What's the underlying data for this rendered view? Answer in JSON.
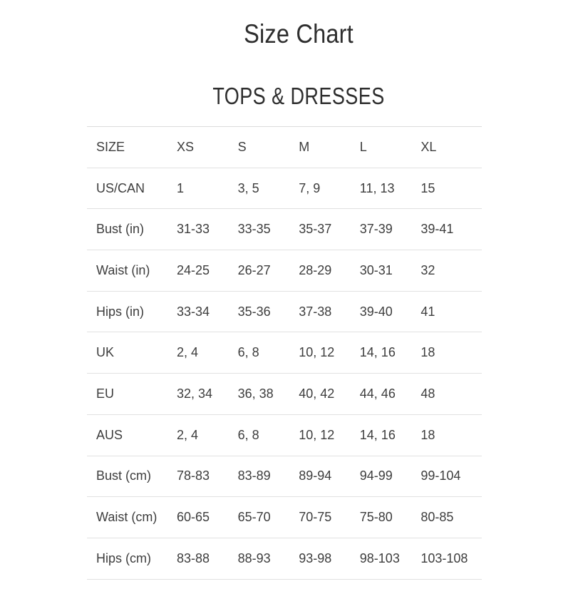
{
  "page": {
    "title": "Size Chart",
    "section_title": "TOPS & DRESSES"
  },
  "colors": {
    "background": "#ffffff",
    "heading_text": "#2e2e2e",
    "table_text": "#3d3d3d",
    "divider": "#e1e1e1"
  },
  "chart_data": {
    "type": "table",
    "title": "Size Chart",
    "subtitle": "TOPS & DRESSES",
    "columns": [
      "SIZE",
      "XS",
      "S",
      "M",
      "L",
      "XL"
    ],
    "rows": [
      {
        "label": "US/CAN",
        "values": [
          "1",
          "3, 5",
          "7, 9",
          "11, 13",
          "15"
        ]
      },
      {
        "label": "Bust (in)",
        "values": [
          "31-33",
          "33-35",
          "35-37",
          "37-39",
          "39-41"
        ]
      },
      {
        "label": "Waist (in)",
        "values": [
          "24-25",
          "26-27",
          "28-29",
          "30-31",
          "32"
        ]
      },
      {
        "label": "Hips (in)",
        "values": [
          "33-34",
          "35-36",
          "37-38",
          "39-40",
          "41"
        ]
      },
      {
        "label": "UK",
        "values": [
          "2, 4",
          "6, 8",
          "10, 12",
          "14, 16",
          "18"
        ]
      },
      {
        "label": "EU",
        "values": [
          "32, 34",
          "36, 38",
          "40, 42",
          "44, 46",
          "48"
        ]
      },
      {
        "label": "AUS",
        "values": [
          "2, 4",
          "6, 8",
          "10, 12",
          "14, 16",
          "18"
        ]
      },
      {
        "label": "Bust (cm)",
        "values": [
          "78-83",
          "83-89",
          "89-94",
          "94-99",
          "99-104"
        ]
      },
      {
        "label": "Waist (cm)",
        "values": [
          "60-65",
          "65-70",
          "70-75",
          "75-80",
          "80-85"
        ]
      },
      {
        "label": "Hips (cm)",
        "values": [
          "83-88",
          "88-93",
          "93-98",
          "98-103",
          "103-108"
        ]
      }
    ]
  }
}
